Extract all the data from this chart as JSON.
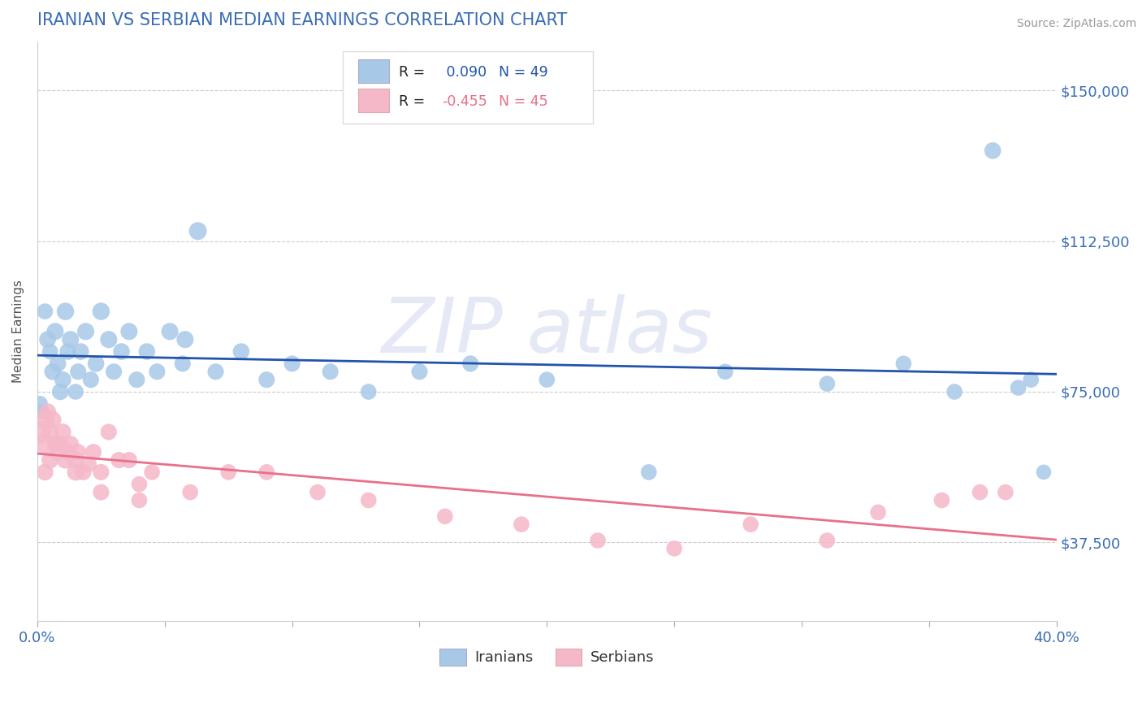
{
  "title": "IRANIAN VS SERBIAN MEDIAN EARNINGS CORRELATION CHART",
  "source_text": "Source: ZipAtlas.com",
  "ylabel": "Median Earnings",
  "xlim": [
    0.0,
    0.4
  ],
  "ylim": [
    18000,
    162000
  ],
  "yticks": [
    37500,
    75000,
    112500,
    150000
  ],
  "ytick_labels": [
    "$37,500",
    "$75,000",
    "$112,500",
    "$150,000"
  ],
  "bg_color": "#ffffff",
  "grid_color": "#cccccc",
  "title_color": "#3a6db5",
  "axis_label_color": "#555555",
  "tick_label_color": "#3a6db5",
  "source_color": "#999999",
  "iranian_color": "#a8c8e8",
  "serbian_color": "#f5b8c8",
  "iranian_line_color": "#2255aa",
  "serbian_line_color": "#e8708a",
  "R_iranian": 0.09,
  "N_iranian": 49,
  "R_serbian": -0.455,
  "N_serbian": 45,
  "iranians_x": [
    0.001,
    0.002,
    0.003,
    0.004,
    0.005,
    0.006,
    0.007,
    0.008,
    0.009,
    0.01,
    0.011,
    0.012,
    0.013,
    0.015,
    0.016,
    0.017,
    0.019,
    0.021,
    0.023,
    0.025,
    0.028,
    0.03,
    0.033,
    0.036,
    0.039,
    0.043,
    0.047,
    0.052,
    0.057,
    0.063,
    0.058,
    0.07,
    0.08,
    0.09,
    0.1,
    0.115,
    0.13,
    0.15,
    0.17,
    0.2,
    0.24,
    0.27,
    0.31,
    0.34,
    0.36,
    0.375,
    0.385,
    0.39,
    0.395
  ],
  "iranians_y": [
    72000,
    70000,
    95000,
    88000,
    85000,
    80000,
    90000,
    82000,
    75000,
    78000,
    95000,
    85000,
    88000,
    75000,
    80000,
    85000,
    90000,
    78000,
    82000,
    95000,
    88000,
    80000,
    85000,
    90000,
    78000,
    85000,
    80000,
    90000,
    82000,
    115000,
    88000,
    80000,
    85000,
    78000,
    82000,
    80000,
    75000,
    80000,
    82000,
    78000,
    55000,
    80000,
    77000,
    82000,
    75000,
    135000,
    76000,
    78000,
    55000
  ],
  "serbians_x": [
    0.001,
    0.002,
    0.003,
    0.004,
    0.005,
    0.006,
    0.007,
    0.008,
    0.009,
    0.01,
    0.011,
    0.012,
    0.013,
    0.015,
    0.016,
    0.018,
    0.02,
    0.022,
    0.025,
    0.028,
    0.032,
    0.036,
    0.04,
    0.045,
    0.06,
    0.075,
    0.09,
    0.11,
    0.13,
    0.16,
    0.19,
    0.22,
    0.25,
    0.28,
    0.31,
    0.33,
    0.355,
    0.37,
    0.38,
    0.003,
    0.005,
    0.008,
    0.015,
    0.025,
    0.04
  ],
  "serbians_y": [
    65000,
    62000,
    68000,
    70000,
    65000,
    68000,
    62000,
    60000,
    62000,
    65000,
    58000,
    60000,
    62000,
    58000,
    60000,
    55000,
    57000,
    60000,
    55000,
    65000,
    58000,
    58000,
    52000,
    55000,
    50000,
    55000,
    55000,
    50000,
    48000,
    44000,
    42000,
    38000,
    36000,
    42000,
    38000,
    45000,
    48000,
    50000,
    50000,
    55000,
    58000,
    62000,
    55000,
    50000,
    48000
  ],
  "iranian_sizes": [
    200,
    180,
    200,
    220,
    200,
    220,
    230,
    220,
    220,
    220,
    240,
    220,
    230,
    200,
    210,
    220,
    230,
    210,
    220,
    240,
    230,
    210,
    220,
    230,
    210,
    220,
    210,
    230,
    210,
    250,
    230,
    210,
    220,
    210,
    210,
    210,
    200,
    210,
    210,
    200,
    200,
    200,
    200,
    200,
    200,
    220,
    200,
    200,
    180
  ],
  "serbian_sizes": [
    400,
    350,
    280,
    230,
    220,
    240,
    220,
    230,
    220,
    220,
    230,
    210,
    220,
    230,
    210,
    210,
    220,
    210,
    210,
    210,
    210,
    210,
    200,
    200,
    200,
    200,
    200,
    200,
    200,
    200,
    200,
    200,
    200,
    200,
    200,
    200,
    200,
    200,
    200,
    220,
    230,
    240,
    230,
    210,
    200
  ]
}
